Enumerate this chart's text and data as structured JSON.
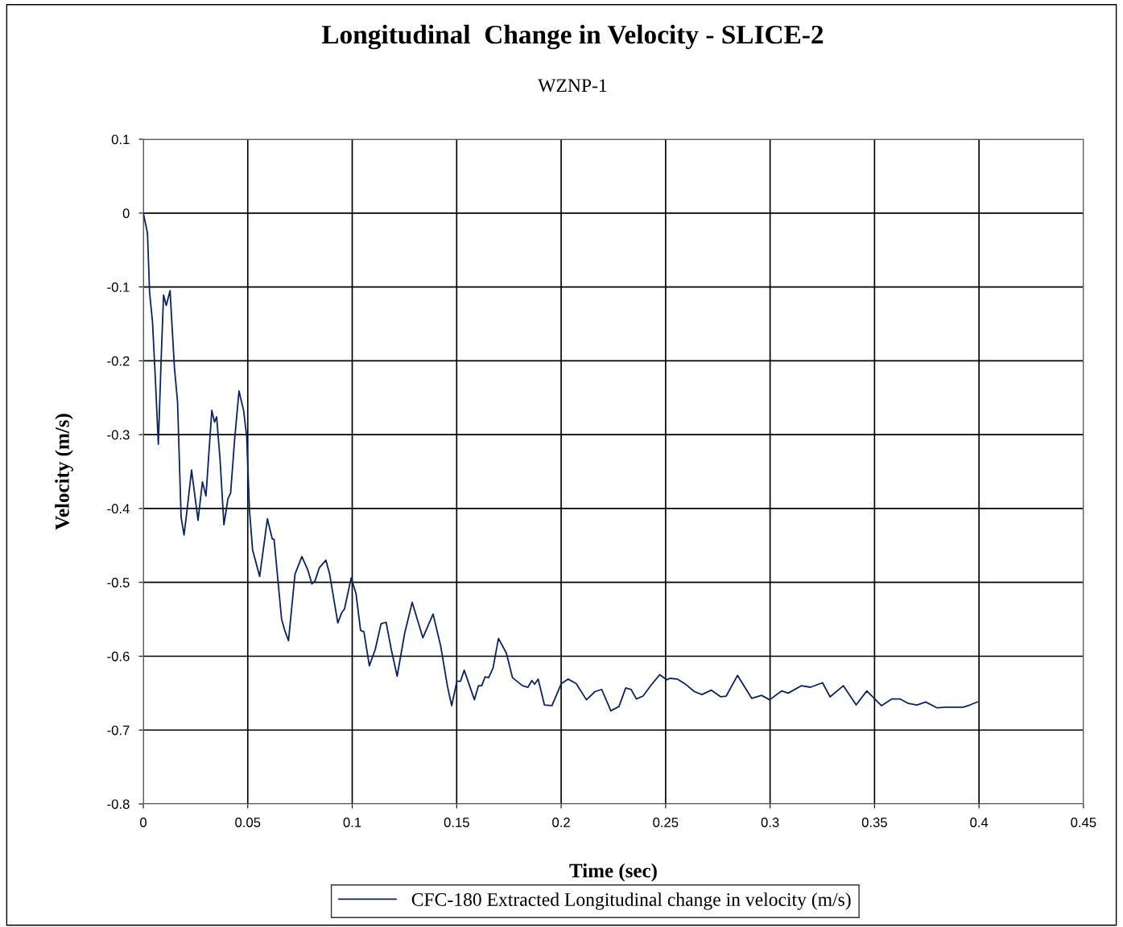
{
  "chart_data": {
    "type": "line",
    "title": "Longitudinal  Change in Velocity - SLICE-2",
    "subtitle": "WZNP-1",
    "xlabel": "Time (sec)",
    "ylabel": "Velocity (m/s)",
    "xlim": [
      0,
      0.45
    ],
    "xticks": [
      0,
      0.05,
      0.1,
      0.15,
      0.2,
      0.25,
      0.3,
      0.35,
      0.4,
      0.45
    ],
    "ylim": [
      -0.8,
      0.1
    ],
    "yticks": [
      0.1,
      0,
      -0.1,
      -0.2,
      -0.3,
      -0.4,
      -0.5,
      -0.6,
      -0.7,
      -0.8
    ],
    "grid": true,
    "legend": "bottom",
    "marker": "none",
    "line_style": "solid",
    "series": [
      {
        "name": "CFC-180 Extracted Longitudinal change in velocity (m/s)",
        "color": "#0a2463",
        "x": [
          0,
          0.002,
          0.003,
          0.0044,
          0.0057,
          0.0072,
          0.0085,
          0.0097,
          0.011,
          0.0128,
          0.0149,
          0.0164,
          0.0181,
          0.0195,
          0.021,
          0.0231,
          0.0262,
          0.0283,
          0.03,
          0.0328,
          0.0341,
          0.0351,
          0.0367,
          0.0386,
          0.0405,
          0.0418,
          0.0437,
          0.0458,
          0.048,
          0.0495,
          0.0508,
          0.0523,
          0.0557,
          0.0594,
          0.0617,
          0.0626,
          0.0662,
          0.0677,
          0.0695,
          0.0726,
          0.0759,
          0.0787,
          0.0807,
          0.0822,
          0.0843,
          0.0874,
          0.0892,
          0.0931,
          0.095,
          0.0963,
          0.0995,
          0.1018,
          0.104,
          0.1056,
          0.1082,
          0.111,
          0.1138,
          0.1162,
          0.1187,
          0.1215,
          0.1251,
          0.1287,
          0.1338,
          0.1387,
          0.1424,
          0.1456,
          0.1476,
          0.1501,
          0.1518,
          0.1536,
          0.1585,
          0.1604,
          0.162,
          0.1636,
          0.1653,
          0.1674,
          0.17,
          0.1738,
          0.1767,
          0.1815,
          0.1841,
          0.186,
          0.1873,
          0.189,
          0.192,
          0.1956,
          0.2001,
          0.2033,
          0.2072,
          0.2121,
          0.2162,
          0.2194,
          0.2238,
          0.2277,
          0.2309,
          0.2335,
          0.236,
          0.2392,
          0.2431,
          0.2472,
          0.2505,
          0.2521,
          0.2557,
          0.2591,
          0.2638,
          0.2674,
          0.2719,
          0.2764,
          0.279,
          0.2844,
          0.2912,
          0.2959,
          0.2998,
          0.3056,
          0.3087,
          0.3149,
          0.3193,
          0.3251,
          0.3287,
          0.3351,
          0.3412,
          0.3463,
          0.3533,
          0.3582,
          0.3623,
          0.3662,
          0.3703,
          0.3745,
          0.38,
          0.3841,
          0.3924,
          0.3957,
          0.3992
        ],
        "values": [
          0,
          -0.027,
          -0.107,
          -0.147,
          -0.22,
          -0.313,
          -0.202,
          -0.111,
          -0.125,
          -0.105,
          -0.209,
          -0.256,
          -0.412,
          -0.436,
          -0.401,
          -0.348,
          -0.416,
          -0.364,
          -0.383,
          -0.267,
          -0.283,
          -0.276,
          -0.332,
          -0.422,
          -0.387,
          -0.379,
          -0.307,
          -0.241,
          -0.267,
          -0.303,
          -0.401,
          -0.456,
          -0.492,
          -0.414,
          -0.441,
          -0.442,
          -0.55,
          -0.565,
          -0.579,
          -0.489,
          -0.465,
          -0.483,
          -0.502,
          -0.498,
          -0.48,
          -0.47,
          -0.489,
          -0.555,
          -0.541,
          -0.536,
          -0.494,
          -0.515,
          -0.565,
          -0.567,
          -0.613,
          -0.591,
          -0.556,
          -0.554,
          -0.591,
          -0.627,
          -0.569,
          -0.527,
          -0.575,
          -0.543,
          -0.587,
          -0.641,
          -0.667,
          -0.634,
          -0.634,
          -0.619,
          -0.659,
          -0.64,
          -0.64,
          -0.628,
          -0.629,
          -0.616,
          -0.576,
          -0.596,
          -0.629,
          -0.64,
          -0.642,
          -0.633,
          -0.638,
          -0.631,
          -0.666,
          -0.667,
          -0.637,
          -0.631,
          -0.637,
          -0.659,
          -0.648,
          -0.645,
          -0.674,
          -0.668,
          -0.643,
          -0.645,
          -0.658,
          -0.654,
          -0.639,
          -0.625,
          -0.632,
          -0.63,
          -0.631,
          -0.637,
          -0.648,
          -0.652,
          -0.646,
          -0.655,
          -0.654,
          -0.626,
          -0.657,
          -0.653,
          -0.659,
          -0.647,
          -0.65,
          -0.64,
          -0.642,
          -0.636,
          -0.655,
          -0.64,
          -0.666,
          -0.647,
          -0.667,
          -0.658,
          -0.658,
          -0.664,
          -0.666,
          -0.662,
          -0.67,
          -0.669,
          -0.669,
          -0.666,
          -0.662
        ]
      }
    ]
  }
}
